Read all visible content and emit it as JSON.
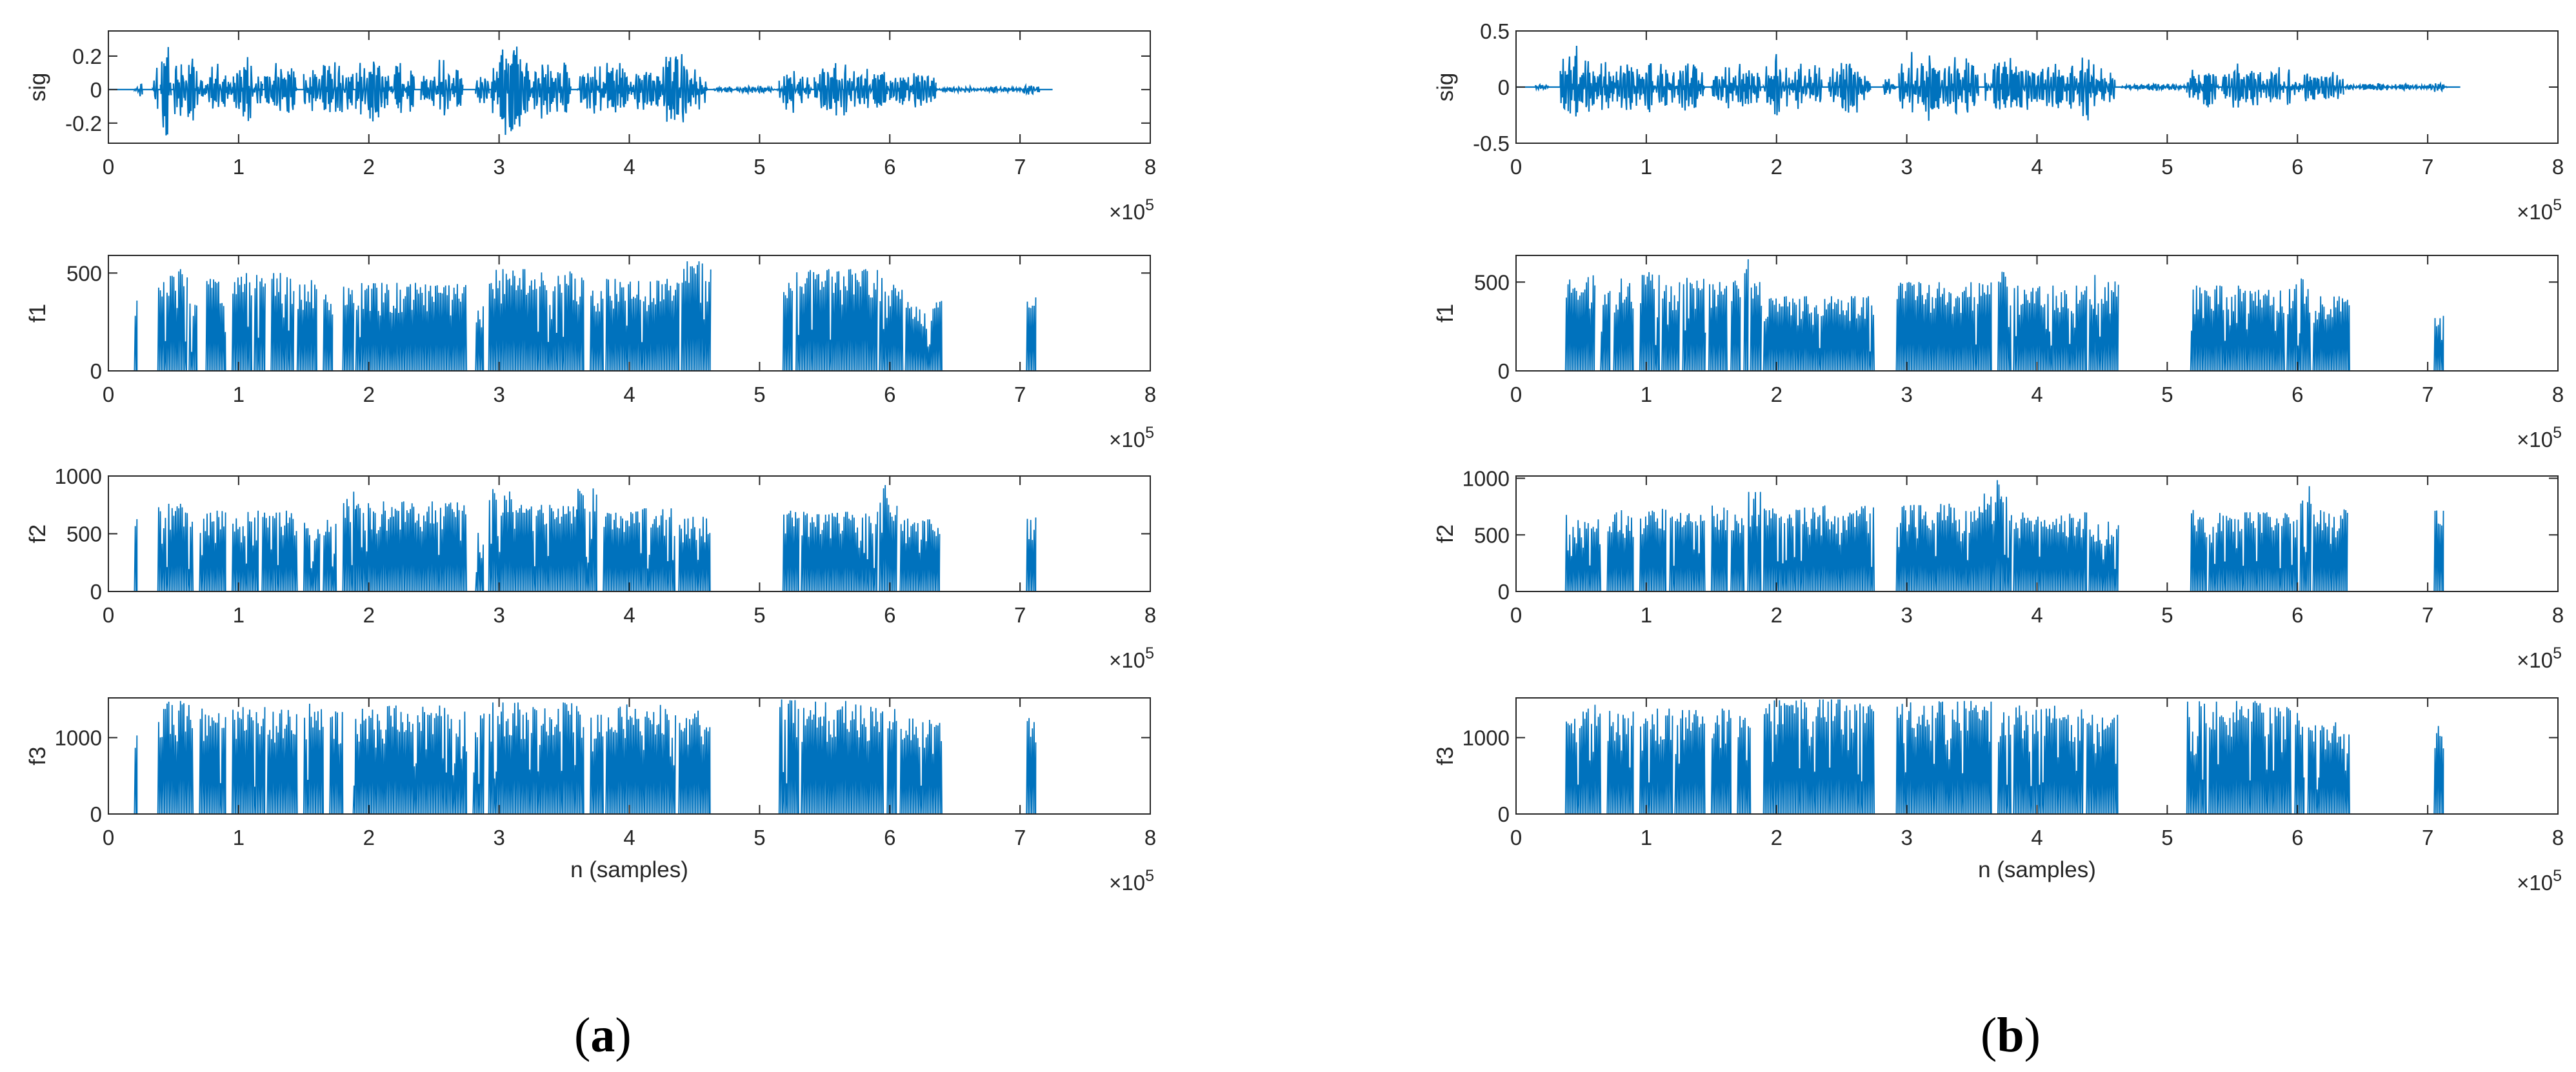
{
  "colors": {
    "trace": "#0072BD",
    "axes": "#262626",
    "background": "#ffffff"
  },
  "panels": [
    {
      "label": "a",
      "label_open": "(",
      "label_close": ")"
    },
    {
      "label": "b",
      "label_open": "(",
      "label_close": ")"
    }
  ],
  "chart_data": [
    {
      "type": "line",
      "panel": "a",
      "row": 0,
      "ylabel": "sig",
      "xlabel": "",
      "xlim": [
        0,
        8
      ],
      "x_exponent_label": "×10",
      "x_exponent": "5",
      "xticks": [
        "0",
        "1",
        "2",
        "3",
        "4",
        "5",
        "6",
        "7",
        "8"
      ],
      "ylim": [
        -0.32,
        0.35
      ],
      "yticks": [
        -0.2,
        0,
        0.2
      ],
      "yticklabels": [
        "-0.2",
        "0",
        "0.2"
      ],
      "signal_end": 7.25,
      "segments": [
        [
          0.2,
          0.26,
          0.05,
          3
        ],
        [
          0.34,
          0.38,
          0.22,
          4
        ],
        [
          0.4,
          0.48,
          0.33,
          5
        ],
        [
          0.5,
          0.58,
          0.22,
          6
        ],
        [
          0.58,
          0.72,
          0.2,
          7
        ],
        [
          0.72,
          0.96,
          0.16,
          8
        ],
        [
          0.96,
          1.18,
          0.2,
          9
        ],
        [
          1.2,
          1.45,
          0.17,
          10
        ],
        [
          1.5,
          1.88,
          0.17,
          11
        ],
        [
          1.9,
          2.1,
          0.24,
          12
        ],
        [
          2.1,
          2.35,
          0.2,
          13
        ],
        [
          2.4,
          2.72,
          0.19,
          14
        ],
        [
          2.82,
          2.92,
          0.1,
          15
        ],
        [
          2.94,
          3.25,
          0.29,
          16
        ],
        [
          3.25,
          3.55,
          0.21,
          17
        ],
        [
          3.6,
          4.0,
          0.2,
          18
        ],
        [
          4.0,
          4.25,
          0.18,
          19
        ],
        [
          4.25,
          4.45,
          0.26,
          20
        ],
        [
          4.45,
          4.6,
          0.15,
          21
        ],
        [
          4.65,
          5.15,
          0.02,
          22
        ],
        [
          5.15,
          5.4,
          0.15,
          23
        ],
        [
          5.42,
          5.75,
          0.17,
          24
        ],
        [
          5.75,
          6.0,
          0.14,
          25
        ],
        [
          6.0,
          6.35,
          0.12,
          26
        ],
        [
          6.35,
          7.0,
          0.02,
          27
        ],
        [
          7.0,
          7.15,
          0.03,
          28
        ]
      ]
    },
    {
      "type": "line",
      "panel": "a",
      "row": 1,
      "ylabel": "f1",
      "xlabel": "",
      "xlim": [
        0,
        8
      ],
      "x_exponent_label": "×10",
      "x_exponent": "5",
      "xticks": [
        "0",
        "1",
        "2",
        "3",
        "4",
        "5",
        "6",
        "7",
        "8"
      ],
      "ylim": [
        0,
        590
      ],
      "yticks": [
        0,
        500
      ],
      "yticklabels": [
        "0",
        "500"
      ],
      "signal_end": 7.25,
      "segments": [
        [
          0.2,
          0.22,
          410,
          31
        ],
        [
          0.38,
          0.6,
          520,
          32
        ],
        [
          0.62,
          0.68,
          380,
          33
        ],
        [
          0.75,
          0.9,
          470,
          34
        ],
        [
          0.95,
          1.1,
          520,
          35
        ],
        [
          1.12,
          1.2,
          490,
          36
        ],
        [
          1.25,
          1.42,
          500,
          37
        ],
        [
          1.45,
          1.6,
          470,
          38
        ],
        [
          1.65,
          1.72,
          450,
          39
        ],
        [
          1.8,
          1.88,
          430,
          40
        ],
        [
          1.9,
          2.75,
          450,
          41
        ],
        [
          2.82,
          2.88,
          330,
          42
        ],
        [
          2.92,
          3.65,
          520,
          43
        ],
        [
          3.7,
          3.8,
          410,
          44
        ],
        [
          3.82,
          4.38,
          470,
          45
        ],
        [
          4.4,
          4.62,
          560,
          46
        ],
        [
          5.18,
          5.25,
          450,
          47
        ],
        [
          5.28,
          5.9,
          520,
          48
        ],
        [
          5.92,
          6.1,
          480,
          49
        ],
        [
          6.12,
          6.4,
          380,
          50
        ],
        [
          7.05,
          7.12,
          380,
          51
        ]
      ]
    },
    {
      "type": "line",
      "panel": "a",
      "row": 2,
      "ylabel": "f2",
      "xlabel": "",
      "xlim": [
        0,
        8
      ],
      "x_exponent_label": "×10",
      "x_exponent": "5",
      "xticks": [
        "0",
        "1",
        "2",
        "3",
        "4",
        "5",
        "6",
        "7",
        "8"
      ],
      "ylim": [
        0,
        1000
      ],
      "yticks": [
        0,
        500,
        1000
      ],
      "yticklabels": [
        "0",
        "500",
        "1000"
      ],
      "signal_end": 7.25,
      "segments": [
        [
          0.2,
          0.22,
          640,
          61
        ],
        [
          0.38,
          0.65,
          760,
          62
        ],
        [
          0.7,
          0.9,
          700,
          63
        ],
        [
          0.95,
          1.15,
          700,
          64
        ],
        [
          1.18,
          1.45,
          700,
          65
        ],
        [
          1.5,
          1.62,
          600,
          66
        ],
        [
          1.65,
          1.75,
          620,
          67
        ],
        [
          1.8,
          1.9,
          870,
          68
        ],
        [
          1.9,
          2.75,
          780,
          69
        ],
        [
          2.82,
          2.88,
          560,
          70
        ],
        [
          2.92,
          3.1,
          950,
          71
        ],
        [
          3.1,
          3.6,
          750,
          72
        ],
        [
          3.6,
          3.75,
          900,
          73
        ],
        [
          3.8,
          4.35,
          720,
          74
        ],
        [
          4.38,
          4.62,
          660,
          75
        ],
        [
          5.18,
          5.3,
          700,
          76
        ],
        [
          5.32,
          5.9,
          690,
          77
        ],
        [
          5.92,
          6.05,
          930,
          78
        ],
        [
          6.08,
          6.38,
          640,
          79
        ],
        [
          7.05,
          7.12,
          640,
          80
        ]
      ]
    },
    {
      "type": "line",
      "panel": "a",
      "row": 3,
      "ylabel": "f3",
      "xlabel": "n (samples)",
      "xlim": [
        0,
        8
      ],
      "x_exponent_label": "×10",
      "x_exponent": "5",
      "xticks": [
        "0",
        "1",
        "2",
        "3",
        "4",
        "5",
        "6",
        "7",
        "8"
      ],
      "ylim": [
        0,
        1520
      ],
      "yticks": [
        0,
        1000
      ],
      "yticklabels": [
        "0",
        "1000"
      ],
      "signal_end": 7.25,
      "segments": [
        [
          0.2,
          0.22,
          1280,
          91
        ],
        [
          0.38,
          0.65,
          1480,
          92
        ],
        [
          0.7,
          0.9,
          1380,
          93
        ],
        [
          0.95,
          1.2,
          1400,
          94
        ],
        [
          1.22,
          1.45,
          1380,
          95
        ],
        [
          1.5,
          1.65,
          1470,
          96
        ],
        [
          1.7,
          1.8,
          1350,
          97
        ],
        [
          1.88,
          2.75,
          1420,
          98
        ],
        [
          2.8,
          2.88,
          1350,
          99
        ],
        [
          2.92,
          3.65,
          1460,
          100
        ],
        [
          3.7,
          3.8,
          1300,
          101
        ],
        [
          3.82,
          4.35,
          1450,
          102
        ],
        [
          4.38,
          4.62,
          1400,
          103
        ],
        [
          5.15,
          5.3,
          1500,
          104
        ],
        [
          5.32,
          5.95,
          1480,
          105
        ],
        [
          5.98,
          6.05,
          1400,
          106
        ],
        [
          6.08,
          6.4,
          1250,
          107
        ],
        [
          7.05,
          7.12,
          1260,
          108
        ]
      ]
    },
    {
      "type": "line",
      "panel": "b",
      "row": 0,
      "ylabel": "sig",
      "xlabel": "",
      "xlim": [
        0,
        8
      ],
      "x_exponent_label": "×10",
      "x_exponent": "5",
      "xticks": [
        "0",
        "1",
        "2",
        "3",
        "4",
        "5",
        "6",
        "7",
        "8"
      ],
      "ylim": [
        -0.5,
        0.5
      ],
      "yticks": [
        -0.5,
        0,
        0.5
      ],
      "yticklabels": [
        "-0.5",
        "0",
        "0.5"
      ],
      "signal_end": 7.25,
      "segments": [
        [
          0.15,
          0.25,
          0.04,
          111
        ],
        [
          0.34,
          0.4,
          0.28,
          112
        ],
        [
          0.4,
          0.5,
          0.42,
          113
        ],
        [
          0.5,
          0.6,
          0.3,
          114
        ],
        [
          0.6,
          0.75,
          0.25,
          115
        ],
        [
          0.75,
          0.96,
          0.22,
          116
        ],
        [
          0.96,
          1.2,
          0.26,
          117
        ],
        [
          1.2,
          1.45,
          0.22,
          118
        ],
        [
          1.5,
          1.88,
          0.22,
          119
        ],
        [
          1.9,
          2.1,
          0.3,
          120
        ],
        [
          2.1,
          2.35,
          0.26,
          121
        ],
        [
          2.4,
          2.72,
          0.25,
          122
        ],
        [
          2.82,
          2.92,
          0.1,
          123
        ],
        [
          2.94,
          3.25,
          0.38,
          124
        ],
        [
          3.25,
          3.55,
          0.28,
          125
        ],
        [
          3.6,
          4.0,
          0.26,
          126
        ],
        [
          4.0,
          4.25,
          0.24,
          127
        ],
        [
          4.25,
          4.45,
          0.33,
          128
        ],
        [
          4.45,
          4.6,
          0.2,
          129
        ],
        [
          4.65,
          5.15,
          0.03,
          130
        ],
        [
          5.15,
          5.4,
          0.2,
          131
        ],
        [
          5.42,
          5.75,
          0.22,
          132
        ],
        [
          5.75,
          6.0,
          0.18,
          133
        ],
        [
          6.0,
          6.35,
          0.16,
          134
        ],
        [
          6.35,
          7.0,
          0.03,
          135
        ],
        [
          7.0,
          7.15,
          0.05,
          136
        ]
      ]
    },
    {
      "type": "line",
      "panel": "b",
      "row": 1,
      "ylabel": "f1",
      "xlabel": "",
      "xlim": [
        0,
        8
      ],
      "x_exponent_label": "×10",
      "x_exponent": "5",
      "xticks": [
        "0",
        "1",
        "2",
        "3",
        "4",
        "5",
        "6",
        "7",
        "8"
      ],
      "ylim": [
        0,
        650
      ],
      "yticks": [
        0,
        500
      ],
      "yticklabels": [
        "0",
        "500"
      ],
      "signal_end": 7.25,
      "segments": [
        [
          0.38,
          0.6,
          540,
          141
        ],
        [
          0.65,
          0.72,
          450,
          142
        ],
        [
          0.75,
          0.9,
          520,
          143
        ],
        [
          0.95,
          1.1,
          560,
          144
        ],
        [
          1.12,
          1.25,
          500,
          145
        ],
        [
          1.28,
          1.45,
          540,
          146
        ],
        [
          1.48,
          1.62,
          500,
          147
        ],
        [
          1.65,
          1.72,
          520,
          148
        ],
        [
          1.75,
          1.78,
          640,
          149
        ],
        [
          1.8,
          1.88,
          500,
          150
        ],
        [
          1.9,
          2.75,
          420,
          151
        ],
        [
          2.92,
          3.65,
          500,
          152
        ],
        [
          3.7,
          3.8,
          560,
          153
        ],
        [
          3.82,
          4.38,
          480,
          154
        ],
        [
          4.4,
          4.62,
          540,
          155
        ],
        [
          5.18,
          5.9,
          480,
          156
        ],
        [
          5.92,
          6.1,
          520,
          157
        ],
        [
          6.12,
          6.4,
          420,
          158
        ],
        [
          7.05,
          7.12,
          370,
          159
        ]
      ]
    },
    {
      "type": "line",
      "panel": "b",
      "row": 2,
      "ylabel": "f2",
      "xlabel": "",
      "xlim": [
        0,
        8
      ],
      "x_exponent_label": "×10",
      "x_exponent": "5",
      "xticks": [
        "0",
        "1",
        "2",
        "3",
        "4",
        "5",
        "6",
        "7",
        "8"
      ],
      "ylim": [
        0,
        1020
      ],
      "yticks": [
        0,
        500,
        1000
      ],
      "yticklabels": [
        "0",
        "500",
        "1000"
      ],
      "signal_end": 7.25,
      "segments": [
        [
          0.38,
          0.65,
          700,
          161
        ],
        [
          0.7,
          0.9,
          720,
          162
        ],
        [
          0.95,
          1.15,
          760,
          163
        ],
        [
          1.18,
          1.45,
          700,
          164
        ],
        [
          1.5,
          1.62,
          760,
          165
        ],
        [
          1.65,
          1.75,
          680,
          166
        ],
        [
          1.78,
          1.88,
          880,
          167
        ],
        [
          1.9,
          2.75,
          760,
          168
        ],
        [
          2.92,
          3.55,
          780,
          169
        ],
        [
          3.55,
          3.65,
          890,
          170
        ],
        [
          3.65,
          3.72,
          1000,
          171
        ],
        [
          3.72,
          3.8,
          840,
          172
        ],
        [
          3.82,
          4.38,
          700,
          173
        ],
        [
          4.4,
          4.62,
          620,
          174
        ],
        [
          5.18,
          5.3,
          720,
          175
        ],
        [
          5.32,
          6.0,
          700,
          176
        ],
        [
          6.02,
          6.1,
          930,
          177
        ],
        [
          6.12,
          6.38,
          740,
          178
        ],
        [
          7.05,
          7.12,
          720,
          179
        ]
      ]
    },
    {
      "type": "line",
      "panel": "b",
      "row": 3,
      "ylabel": "f3",
      "xlabel": "n (samples)",
      "xlim": [
        0,
        8
      ],
      "x_exponent_label": "×10",
      "x_exponent": "5",
      "xticks": [
        "0",
        "1",
        "2",
        "3",
        "4",
        "5",
        "6",
        "7",
        "8"
      ],
      "ylim": [
        0,
        1520
      ],
      "yticks": [
        0,
        1000
      ],
      "yticklabels": [
        "0",
        "1000"
      ],
      "signal_end": 7.25,
      "segments": [
        [
          0.38,
          0.6,
          1380,
          181
        ],
        [
          0.6,
          0.65,
          1500,
          182
        ],
        [
          0.7,
          0.9,
          1350,
          183
        ],
        [
          0.95,
          1.2,
          1380,
          184
        ],
        [
          1.22,
          1.45,
          1360,
          185
        ],
        [
          1.5,
          1.65,
          1380,
          186
        ],
        [
          1.7,
          1.8,
          1300,
          187
        ],
        [
          1.9,
          2.75,
          1500,
          188
        ],
        [
          2.92,
          3.65,
          1480,
          189
        ],
        [
          3.7,
          3.8,
          1350,
          190
        ],
        [
          3.82,
          4.35,
          1420,
          191
        ],
        [
          4.38,
          4.62,
          1300,
          192
        ],
        [
          5.15,
          5.3,
          1500,
          193
        ],
        [
          5.32,
          5.95,
          1480,
          194
        ],
        [
          5.98,
          6.05,
          1350,
          195
        ],
        [
          6.08,
          6.4,
          1200,
          196
        ],
        [
          7.05,
          7.12,
          1260,
          197
        ]
      ]
    }
  ]
}
